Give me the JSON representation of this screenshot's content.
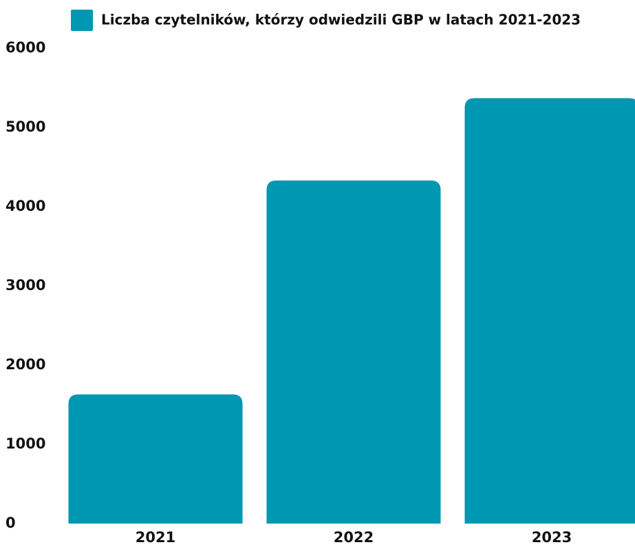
{
  "chart_data": {
    "type": "bar",
    "categories": [
      "2021",
      "2022",
      "2023"
    ],
    "series": [
      {
        "name": "Liczba czytelników, którzy odwiedzili GBP w latach 2021-2023",
        "color": "#0097b2",
        "values": [
          1630,
          4330,
          5370
        ]
      }
    ],
    "ylim": [
      0,
      6000
    ],
    "yticks": [
      0,
      1000,
      2000,
      3000,
      4000,
      5000,
      6000
    ],
    "grid": false,
    "legend": "top"
  }
}
